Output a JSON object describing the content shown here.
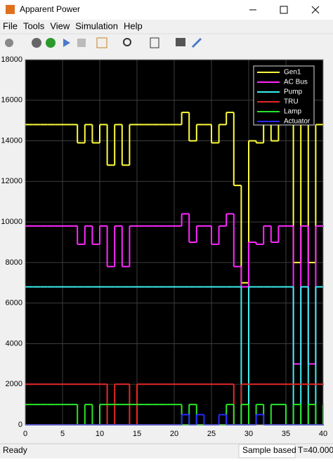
{
  "window": {
    "title": "Apparent Power",
    "menu": [
      "File",
      "Tools",
      "View",
      "Simulation",
      "Help"
    ]
  },
  "status": {
    "left": "Ready",
    "mode": "Sample based",
    "time": "T=40.000"
  },
  "chart_data": {
    "type": "line",
    "step": true,
    "grid": true,
    "legend": "top-right",
    "xlim": [
      0,
      40
    ],
    "xticks": [
      0,
      5,
      10,
      15,
      20,
      25,
      30,
      35,
      40
    ],
    "ylim": [
      0,
      18000
    ],
    "yticks": [
      0,
      2000,
      4000,
      6000,
      8000,
      10000,
      12000,
      14000,
      16000,
      18000
    ],
    "x": [
      0,
      1,
      2,
      3,
      4,
      5,
      6,
      7,
      8,
      9,
      10,
      11,
      12,
      13,
      14,
      15,
      16,
      17,
      18,
      19,
      20,
      21,
      22,
      23,
      24,
      25,
      26,
      27,
      28,
      29,
      30,
      31,
      32,
      33,
      34,
      35,
      36,
      37,
      38,
      39,
      40
    ],
    "series": [
      {
        "name": "Gen1",
        "color": "#ffff3c",
        "values": [
          14800,
          14800,
          14800,
          14800,
          14800,
          14800,
          14800,
          13900,
          14800,
          13900,
          14800,
          12800,
          14800,
          12800,
          14800,
          14800,
          14800,
          14800,
          14800,
          14800,
          14800,
          15400,
          14000,
          14800,
          14800,
          13900,
          14800,
          15400,
          11800,
          7000,
          14000,
          13900,
          14800,
          14000,
          14800,
          14800,
          8000,
          14800,
          8000,
          14800,
          14800
        ]
      },
      {
        "name": "AC Bus",
        "color": "#ff28ff",
        "values": [
          9800,
          9800,
          9800,
          9800,
          9800,
          9800,
          9800,
          8900,
          9800,
          8900,
          9800,
          7800,
          9800,
          7800,
          9800,
          9800,
          9800,
          9800,
          9800,
          9800,
          9800,
          10400,
          9000,
          9800,
          9800,
          8900,
          9800,
          10400,
          7800,
          6800,
          9000,
          8900,
          9800,
          9000,
          9800,
          9800,
          3000,
          9800,
          3000,
          9800,
          9800
        ]
      },
      {
        "name": "Pump",
        "color": "#3cf0f0",
        "values": [
          6800,
          6800,
          6800,
          6800,
          6800,
          6800,
          6800,
          6800,
          6800,
          6800,
          6800,
          6800,
          6800,
          6800,
          6800,
          6800,
          6800,
          6800,
          6800,
          6800,
          6800,
          6800,
          6800,
          6800,
          6800,
          6800,
          6800,
          6800,
          6800,
          0,
          6800,
          6800,
          6800,
          6800,
          6800,
          6800,
          0,
          6800,
          0,
          6800,
          6800
        ]
      },
      {
        "name": "TRU",
        "color": "#e62828",
        "values": [
          2000,
          2000,
          2000,
          2000,
          2000,
          2000,
          2000,
          2000,
          2000,
          2000,
          2000,
          0,
          2000,
          2000,
          0,
          2000,
          2000,
          2000,
          2000,
          2000,
          2000,
          2000,
          2000,
          2000,
          2000,
          2000,
          2000,
          2000,
          0,
          2000,
          2000,
          2000,
          2000,
          2000,
          2000,
          2000,
          2000,
          2000,
          2000,
          2000,
          2000
        ]
      },
      {
        "name": "Lamp",
        "color": "#28e628",
        "values": [
          1000,
          1000,
          1000,
          1000,
          1000,
          1000,
          1000,
          0,
          1000,
          0,
          1000,
          1000,
          1000,
          1000,
          1000,
          1000,
          1000,
          1000,
          1000,
          1000,
          1000,
          0,
          1000,
          0,
          0,
          0,
          0,
          1000,
          0,
          1000,
          0,
          1000,
          0,
          1000,
          1000,
          0,
          1000,
          0,
          1000,
          0,
          1000
        ]
      },
      {
        "name": "Actuator",
        "color": "#2828ff",
        "values": [
          0,
          0,
          0,
          0,
          0,
          0,
          0,
          0,
          0,
          0,
          0,
          0,
          0,
          0,
          0,
          0,
          0,
          0,
          0,
          0,
          0,
          500,
          0,
          500,
          0,
          0,
          500,
          0,
          0,
          0,
          0,
          500,
          0,
          0,
          0,
          0,
          0,
          0,
          0,
          0,
          0
        ]
      }
    ]
  }
}
